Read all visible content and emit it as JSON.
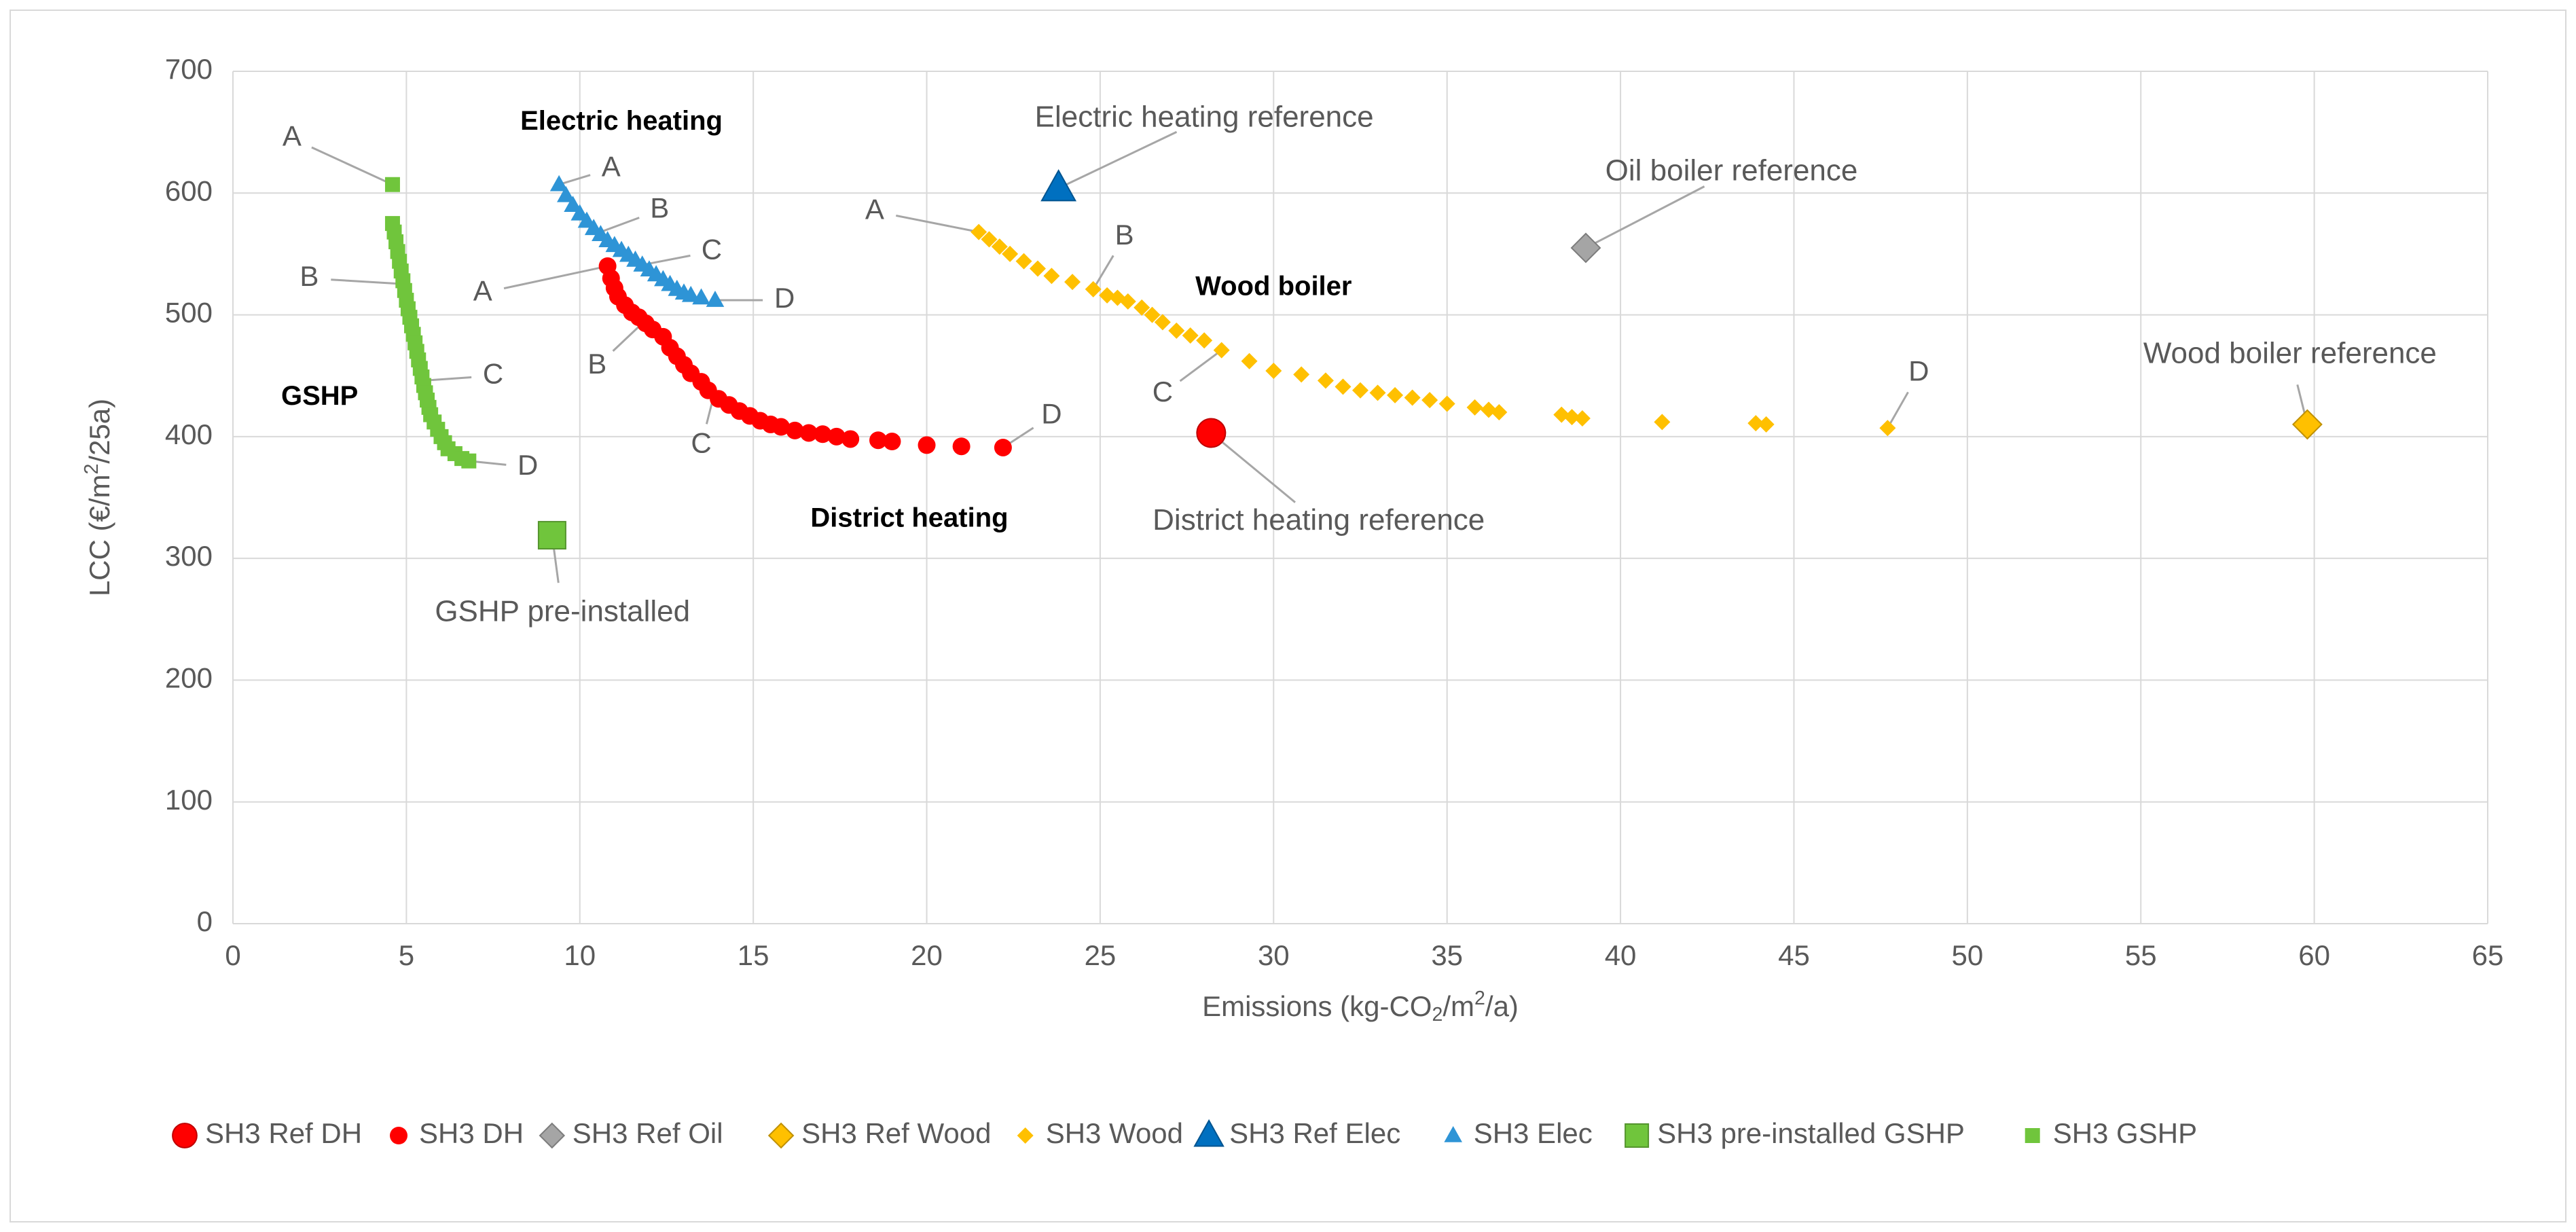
{
  "chart_data": {
    "type": "scatter",
    "xlabel": "Emissions (kg-CO₂/m²/a)",
    "ylabel": "LCC (€/m²/25a)",
    "xlim": [
      0,
      65
    ],
    "ylim": [
      0,
      700
    ],
    "xticks": [
      0,
      5,
      10,
      15,
      20,
      25,
      30,
      35,
      40,
      45,
      50,
      55,
      60,
      65
    ],
    "yticks": [
      0,
      100,
      200,
      300,
      400,
      500,
      600,
      700
    ],
    "grid": true,
    "legend_position": "bottom",
    "series": [
      {
        "name": "SH3 Ref DH",
        "marker": "circle",
        "size": "large",
        "color": "#ff0000",
        "x": [
          28.2
        ],
        "y": [
          403
        ]
      },
      {
        "name": "SH3 DH",
        "marker": "circle",
        "size": "small",
        "color": "#ff0000",
        "x": [
          10.8,
          10.9,
          11.0,
          11.1,
          11.3,
          11.5,
          11.7,
          11.9,
          12.1,
          12.4,
          12.6,
          12.8,
          13.0,
          13.2,
          13.5,
          13.7,
          14.0,
          14.3,
          14.6,
          14.9,
          15.2,
          15.5,
          15.8,
          16.2,
          16.6,
          17.0,
          17.4,
          17.8,
          18.6,
          19.0,
          20.0,
          21.0,
          22.2
        ],
        "y": [
          540,
          530,
          522,
          515,
          508,
          502,
          498,
          493,
          488,
          482,
          473,
          466,
          459,
          452,
          445,
          438,
          431,
          426,
          421,
          417,
          413,
          410,
          408,
          405,
          403,
          402,
          400,
          398,
          397,
          396,
          393,
          392,
          391
        ]
      },
      {
        "name": "SH3 Ref Oil",
        "marker": "diamond",
        "size": "large",
        "color": "#a5a5a5",
        "x": [
          39.0
        ],
        "y": [
          555
        ]
      },
      {
        "name": "SH3 Ref Wood",
        "marker": "diamond",
        "size": "large",
        "color": "#ffc000",
        "x": [
          59.8
        ],
        "y": [
          410
        ]
      },
      {
        "name": "SH3 Wood",
        "marker": "diamond",
        "size": "small",
        "color": "#ffc000",
        "x": [
          21.5,
          21.8,
          22.1,
          22.4,
          22.8,
          23.2,
          23.6,
          24.2,
          24.8,
          25.2,
          25.5,
          25.8,
          26.2,
          26.5,
          26.8,
          27.2,
          27.6,
          28.0,
          28.5,
          29.3,
          30.0,
          30.8,
          31.5,
          32.0,
          32.5,
          33.0,
          33.5,
          34.0,
          34.5,
          35.0,
          35.8,
          36.2,
          36.5,
          38.3,
          38.6,
          38.9,
          41.2,
          43.9,
          44.2,
          47.7
        ],
        "y": [
          568,
          562,
          556,
          550,
          544,
          538,
          532,
          527,
          521,
          516,
          514,
          511,
          506,
          500,
          494,
          487,
          483,
          479,
          471,
          462,
          454,
          451,
          446,
          441,
          438,
          436,
          434,
          432,
          430,
          427,
          424,
          422,
          420,
          418,
          416,
          415,
          412,
          411,
          410,
          407
        ]
      },
      {
        "name": "SH3 Ref Elec",
        "marker": "triangle",
        "size": "large",
        "color": "#0070c0",
        "x": [
          23.8
        ],
        "y": [
          604
        ]
      },
      {
        "name": "SH3 Elec",
        "marker": "triangle",
        "size": "small",
        "color": "#2e94d6",
        "x": [
          9.4,
          9.6,
          9.8,
          10.0,
          10.2,
          10.4,
          10.6,
          10.8,
          11.0,
          11.2,
          11.4,
          11.6,
          11.8,
          12.0,
          12.2,
          12.4,
          12.6,
          12.8,
          13.0,
          13.2,
          13.5,
          13.9
        ],
        "y": [
          607,
          598,
          590,
          583,
          577,
          571,
          566,
          561,
          557,
          553,
          549,
          545,
          541,
          537,
          533,
          529,
          525,
          521,
          518,
          516,
          514,
          512
        ]
      },
      {
        "name": "SH3 pre-installed GSHP",
        "marker": "square",
        "size": "large",
        "color": "#70c53c",
        "x": [
          9.2
        ],
        "y": [
          319
        ]
      },
      {
        "name": "SH3 GSHP",
        "marker": "square",
        "size": "small",
        "color": "#70c53c",
        "x": [
          4.6,
          4.6,
          4.65,
          4.7,
          4.75,
          4.8,
          4.85,
          4.9,
          4.95,
          5.0,
          5.05,
          5.1,
          5.15,
          5.2,
          5.25,
          5.3,
          5.35,
          5.4,
          5.45,
          5.5,
          5.55,
          5.6,
          5.65,
          5.7,
          5.8,
          5.9,
          6.0,
          6.1,
          6.2,
          6.4,
          6.6,
          6.8
        ],
        "y": [
          607,
          575,
          568,
          560,
          552,
          544,
          536,
          528,
          520,
          512,
          505,
          498,
          491,
          484,
          477,
          470,
          463,
          456,
          449,
          442,
          436,
          430,
          424,
          418,
          412,
          406,
          400,
          395,
          390,
          386,
          382,
          380
        ]
      }
    ],
    "annotations": [
      {
        "text": "A",
        "point": [
          4.6,
          607
        ],
        "label": [
          1.7,
          645
        ]
      },
      {
        "text": "B",
        "point": [
          5.1,
          525
        ],
        "label": [
          2.2,
          530
        ]
      },
      {
        "text": "C",
        "point": [
          5.5,
          446
        ],
        "label": [
          7.5,
          450
        ]
      },
      {
        "text": "D",
        "point": [
          6.8,
          380
        ],
        "label": [
          8.5,
          375
        ]
      },
      {
        "text": "A",
        "point": [
          9.4,
          607
        ],
        "label": [
          10.9,
          620
        ]
      },
      {
        "text": "B",
        "point": [
          10.5,
          567
        ],
        "label": [
          12.3,
          586
        ]
      },
      {
        "text": "C",
        "point": [
          11.8,
          541
        ],
        "label": [
          13.8,
          552
        ]
      },
      {
        "text": "D",
        "point": [
          13.9,
          512
        ],
        "label": [
          15.9,
          512
        ]
      },
      {
        "text": "A",
        "point": [
          10.8,
          540
        ],
        "label": [
          7.2,
          518
        ]
      },
      {
        "text": "B",
        "point": [
          11.8,
          493
        ],
        "label": [
          10.5,
          458
        ]
      },
      {
        "text": "C",
        "point": [
          13.9,
          438
        ],
        "label": [
          13.5,
          393
        ]
      },
      {
        "text": "D",
        "point": [
          22.2,
          391
        ],
        "label": [
          23.6,
          417
        ]
      },
      {
        "text": "A",
        "point": [
          21.5,
          568
        ],
        "label": [
          18.5,
          585
        ]
      },
      {
        "text": "B",
        "point": [
          24.8,
          521
        ],
        "label": [
          25.7,
          564
        ]
      },
      {
        "text": "C",
        "point": [
          28.5,
          471
        ],
        "label": [
          26.8,
          435
        ]
      },
      {
        "text": "D",
        "point": [
          47.7,
          407
        ],
        "label": [
          48.6,
          452
        ]
      }
    ],
    "callouts": [
      {
        "text": "Electric heating",
        "label": [
          11.2,
          658
        ],
        "bold": true
      },
      {
        "text": "Electric heating reference",
        "point": [
          23.8,
          604
        ],
        "label": [
          28.0,
          661
        ],
        "leader": true
      },
      {
        "text": "Oil boiler reference",
        "point": [
          39.0,
          555
        ],
        "label": [
          43.2,
          617
        ],
        "leader": true
      },
      {
        "text": "Wood boiler",
        "label": [
          30.0,
          522
        ],
        "bold": true
      },
      {
        "text": "Wood boiler reference",
        "point": [
          59.8,
          410
        ],
        "label": [
          59.3,
          467
        ],
        "leader": true
      },
      {
        "text": "GSHP",
        "label": [
          2.5,
          432
        ],
        "bold": true
      },
      {
        "text": "District heating",
        "label": [
          19.5,
          332
        ],
        "bold": true
      },
      {
        "text": "District heating reference",
        "point": [
          28.2,
          403
        ],
        "label": [
          31.3,
          330
        ],
        "leader": true
      },
      {
        "text": "GSHP pre-installed",
        "point": [
          9.2,
          319
        ],
        "label": [
          9.5,
          255
        ],
        "leader": true
      }
    ]
  }
}
